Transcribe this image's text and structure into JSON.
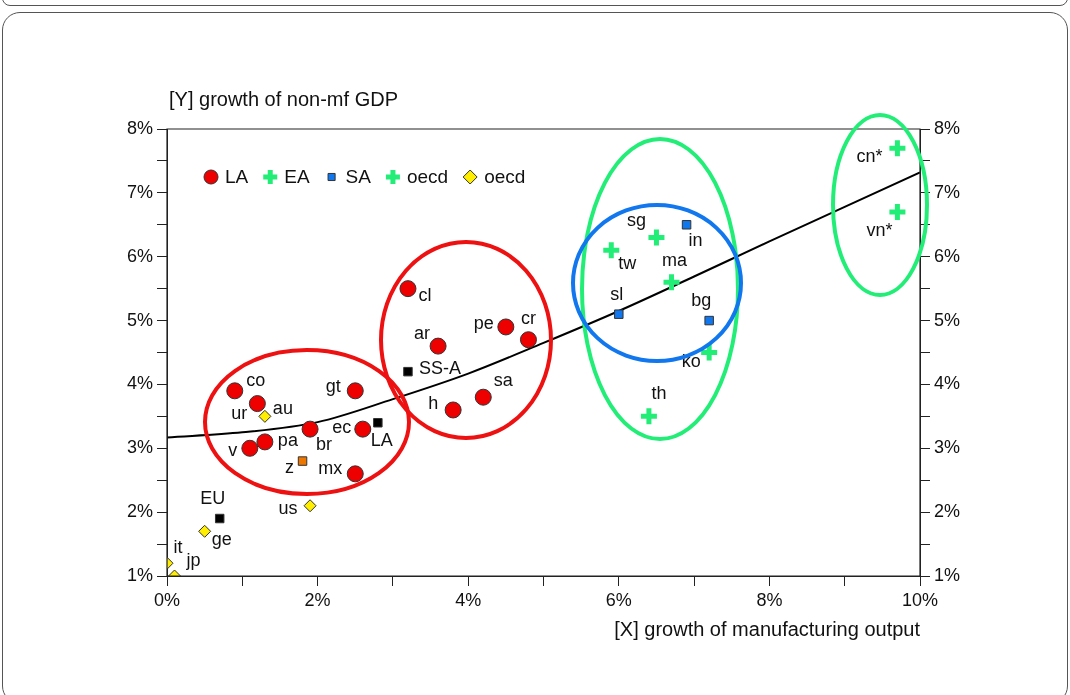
{
  "chart_data": {
    "type": "scatter",
    "xlabel": "[X] growth of manufacturing output",
    "ylabel": "[Y] growth of non-mf GDP",
    "series": [
      {
        "name": "LA",
        "color": "#ee0000",
        "marker": "circle",
        "x": [
          0.9,
          1.2,
          1.1,
          1.3,
          1.9,
          2.5,
          2.6,
          2.5,
          3.2,
          3.6,
          4.5,
          4.8,
          3.8,
          4.2
        ],
        "values": [
          3.9,
          3.7,
          3.0,
          3.1,
          3.3,
          3.9,
          3.3,
          2.6,
          5.5,
          4.6,
          4.9,
          4.7,
          3.6,
          3.8
        ]
      },
      {
        "name": "EA",
        "color": "#22ee77",
        "marker": "cross",
        "x": [
          5.9,
          6.5,
          6.7,
          6.4,
          9.7,
          9.7
        ],
        "values": [
          6.1,
          6.3,
          5.6,
          3.5,
          7.7,
          6.7
        ]
      },
      {
        "name": "SA",
        "color": "#1177ee",
        "marker": "square",
        "x": [
          6.9,
          6.0,
          7.2
        ],
        "values": [
          6.5,
          5.1,
          5.0
        ]
      },
      {
        "name": "oecd",
        "color": "#22ee77",
        "marker": "cross",
        "x": [
          7.2
        ],
        "values": [
          4.5
        ]
      },
      {
        "name": "oecd",
        "color": "#ffee00",
        "marker": "diamond",
        "x": [
          1.3,
          1.9,
          0.5,
          0.0,
          0.1
        ],
        "values": [
          3.5,
          2.1,
          1.7,
          1.2,
          1.0
        ]
      },
      {
        "color": "#000000",
        "marker": "square",
        "x": [
          0.7,
          2.8,
          3.2
        ],
        "values": [
          1.9,
          3.4,
          4.2
        ]
      },
      {
        "color": "#ee7700",
        "marker": "square",
        "x": [
          1.8
        ],
        "values": [
          2.8
        ]
      },
      {
        "type": "line",
        "color": "#000000",
        "marker": "none",
        "line_style": "solid",
        "x": [
          0,
          1,
          2,
          3,
          4,
          5,
          6,
          7,
          8,
          9,
          10
        ],
        "values": [
          3.17,
          3.25,
          3.41,
          3.77,
          4.17,
          4.65,
          5.15,
          5.69,
          6.24,
          6.78,
          7.32
        ]
      }
    ],
    "annotations": [
      {
        "text": "co",
        "x": 0.9,
        "y": 3.9
      },
      {
        "text": "ur",
        "x": 1.2,
        "y": 3.7
      },
      {
        "text": "au",
        "x": 1.3,
        "y": 3.5
      },
      {
        "text": "v",
        "x": 1.1,
        "y": 3.0
      },
      {
        "text": "pa",
        "x": 1.3,
        "y": 3.1
      },
      {
        "text": "br",
        "x": 1.9,
        "y": 3.3
      },
      {
        "text": "gt",
        "x": 2.5,
        "y": 3.9
      },
      {
        "text": "ec",
        "x": 2.6,
        "y": 3.3
      },
      {
        "text": "LA",
        "x": 2.8,
        "y": 3.4
      },
      {
        "text": "z",
        "x": 1.8,
        "y": 2.8
      },
      {
        "text": "mx",
        "x": 2.5,
        "y": 2.6
      },
      {
        "text": "us",
        "x": 1.9,
        "y": 2.1
      },
      {
        "text": "EU",
        "x": 0.7,
        "y": 1.9
      },
      {
        "text": "ge",
        "x": 0.5,
        "y": 1.7
      },
      {
        "text": "it",
        "x": 0.0,
        "y": 1.2
      },
      {
        "text": "jp",
        "x": 0.1,
        "y": 1.0
      },
      {
        "text": "cl",
        "x": 3.2,
        "y": 5.5
      },
      {
        "text": "ar",
        "x": 3.6,
        "y": 4.6
      },
      {
        "text": "SS-A",
        "x": 3.2,
        "y": 4.2
      },
      {
        "text": "pe",
        "x": 4.5,
        "y": 4.9
      },
      {
        "text": "cr",
        "x": 4.8,
        "y": 4.7
      },
      {
        "text": "h",
        "x": 3.8,
        "y": 3.6
      },
      {
        "text": "sa",
        "x": 4.2,
        "y": 3.8
      },
      {
        "text": "sg",
        "x": 6.5,
        "y": 6.3
      },
      {
        "text": "in",
        "x": 6.9,
        "y": 6.5
      },
      {
        "text": "tw",
        "x": 5.9,
        "y": 6.1
      },
      {
        "text": "ma",
        "x": 6.7,
        "y": 5.6
      },
      {
        "text": "sl",
        "x": 6.0,
        "y": 5.1
      },
      {
        "text": "bg",
        "x": 7.2,
        "y": 5.0
      },
      {
        "text": "ko",
        "x": 7.2,
        "y": 4.5
      },
      {
        "text": "th",
        "x": 6.4,
        "y": 3.5
      },
      {
        "text": "cn*",
        "x": 9.7,
        "y": 7.7
      },
      {
        "text": "vn*",
        "x": 9.7,
        "y": 6.7
      }
    ],
    "xlim": [
      0,
      10
    ],
    "xticks": [
      {
        "value": 0,
        "label": "0%"
      },
      {
        "value": 1,
        "label": null
      },
      {
        "value": 2,
        "label": "2%"
      },
      {
        "value": 3,
        "label": null
      },
      {
        "value": 4,
        "label": "4%"
      },
      {
        "value": 5,
        "label": null
      },
      {
        "value": 6,
        "label": "6%"
      },
      {
        "value": 7,
        "label": null
      },
      {
        "value": 8,
        "label": "8%"
      },
      {
        "value": 9,
        "label": null
      },
      {
        "value": 10,
        "label": "10%"
      }
    ],
    "ylim": [
      1,
      8
    ],
    "yticks": [
      {
        "value": 1,
        "label": "1%"
      },
      {
        "value": 1.5,
        "label": null
      },
      {
        "value": 2,
        "label": "2%"
      },
      {
        "value": 2.5,
        "label": null
      },
      {
        "value": 3,
        "label": "3%"
      },
      {
        "value": 3.5,
        "label": null
      },
      {
        "value": 4,
        "label": "4%"
      },
      {
        "value": 4.5,
        "label": null
      },
      {
        "value": 5,
        "label": "5%"
      },
      {
        "value": 5.5,
        "label": null
      },
      {
        "value": 6,
        "label": "6%"
      },
      {
        "value": 6.5,
        "label": null
      },
      {
        "value": 7,
        "label": "7%"
      },
      {
        "value": 7.5,
        "label": null
      },
      {
        "value": 8,
        "label": "8%"
      }
    ],
    "y2lim": [
      1,
      8
    ],
    "y2ticks": [
      {
        "value": 1,
        "label": "1%"
      },
      {
        "value": 1.5,
        "label": null
      },
      {
        "value": 2,
        "label": "2%"
      },
      {
        "value": 2.5,
        "label": null
      },
      {
        "value": 3,
        "label": "3%"
      },
      {
        "value": 3.5,
        "label": null
      },
      {
        "value": 4,
        "label": "4%"
      },
      {
        "value": 4.5,
        "label": null
      },
      {
        "value": 5,
        "label": "5%"
      },
      {
        "value": 5.5,
        "label": null
      },
      {
        "value": 6,
        "label": "6%"
      },
      {
        "value": 6.5,
        "label": null
      },
      {
        "value": 7,
        "label": "7%"
      },
      {
        "value": 7.5,
        "label": null
      },
      {
        "value": 8,
        "label": "8%"
      }
    ],
    "grid": false,
    "legend": "top left"
  }
}
